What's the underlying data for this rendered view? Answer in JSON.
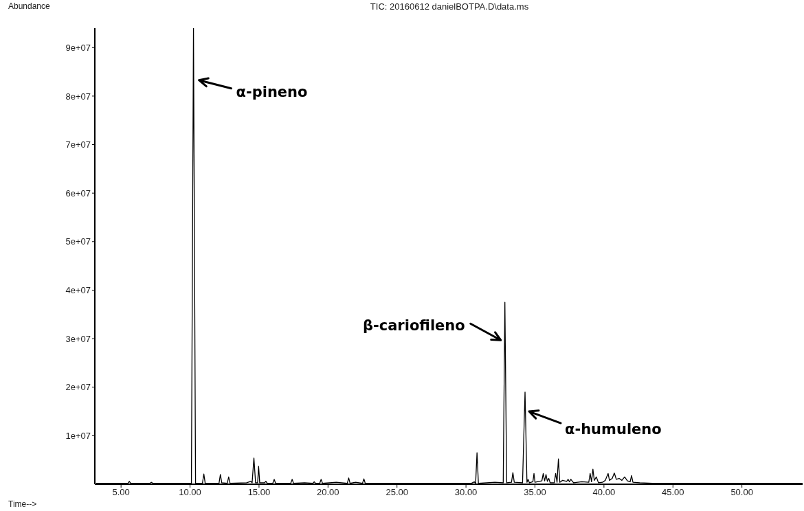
{
  "chart_data": {
    "type": "line",
    "title": "TIC: 20160612 danielBOTPA.D\\data.ms",
    "xlabel": "Time-->",
    "ylabel": "Abundance",
    "x": [
      3.2,
      5.5,
      5.6,
      5.7,
      7.1,
      7.2,
      7.3,
      10.1,
      10.25,
      10.4,
      10.9,
      11.0,
      11.1,
      12.1,
      12.2,
      12.3,
      12.7,
      12.8,
      12.9,
      14.1,
      14.4,
      14.5,
      14.63,
      14.75,
      14.9,
      14.97,
      15.05,
      15.4,
      15.5,
      15.6,
      16.0,
      16.1,
      16.2,
      17.3,
      17.4,
      17.5,
      18.3,
      18.9,
      19.0,
      19.1,
      19.4,
      19.5,
      19.6,
      20.6,
      21.4,
      21.5,
      21.6,
      22.0,
      22.5,
      22.6,
      22.7,
      30.4,
      30.6,
      30.7,
      30.8,
      30.9,
      32.1,
      32.7,
      32.82,
      32.95,
      33.3,
      33.4,
      33.5,
      34.1,
      34.28,
      34.42,
      34.5,
      34.6,
      34.85,
      34.93,
      35.0,
      35.5,
      35.6,
      35.7,
      35.8,
      35.9,
      36.0,
      36.1,
      36.4,
      36.5,
      36.6,
      36.7,
      36.8,
      37.0,
      37.3,
      37.4,
      37.5,
      37.6,
      37.8,
      38.4,
      38.9,
      39.0,
      39.1,
      39.2,
      39.3,
      39.45,
      39.6,
      39.9,
      40.1,
      40.3,
      40.4,
      40.6,
      40.75,
      40.9,
      41.1,
      41.3,
      41.5,
      41.7,
      41.9,
      42.0,
      42.1,
      42.6,
      43.5,
      54.4
    ],
    "series": [
      {
        "color": "#000000",
        "values": [
          200000,
          200000,
          600000,
          200000,
          200000,
          400000,
          200000,
          200000,
          94000000,
          200000,
          200000,
          2100000,
          200000,
          200000,
          2000000,
          300000,
          200000,
          1500000,
          200000,
          300000,
          600000,
          300000,
          5400000,
          300000,
          300000,
          3700000,
          300000,
          300000,
          600000,
          200000,
          200000,
          1000000,
          200000,
          200000,
          1000000,
          200000,
          300000,
          200000,
          500000,
          200000,
          200000,
          1000000,
          200000,
          400000,
          200000,
          1300000,
          200000,
          400000,
          200000,
          1100000,
          200000,
          200000,
          500000,
          200000,
          6500000,
          200000,
          400000,
          300000,
          37500000,
          300000,
          400000,
          2400000,
          400000,
          300000,
          19000000,
          400000,
          1000000,
          300000,
          500000,
          2200000,
          400000,
          700000,
          2200000,
          700000,
          2000000,
          600000,
          1200000,
          300000,
          300000,
          2200000,
          400000,
          5200000,
          400000,
          800000,
          600000,
          1000000,
          500000,
          1000000,
          300000,
          500000,
          400000,
          2200000,
          500000,
          3100000,
          800000,
          1500000,
          300000,
          400000,
          800000,
          2200000,
          800000,
          1200000,
          2300000,
          1000000,
          1200000,
          800000,
          1500000,
          700000,
          500000,
          1800000,
          400000,
          300000,
          200000,
          200000
        ]
      }
    ],
    "xlim": [
      3.1,
      54.4
    ],
    "xticks": [
      {
        "value": 5,
        "label": "5.00"
      },
      {
        "value": 10,
        "label": "10.00"
      },
      {
        "value": 15,
        "label": "15.00"
      },
      {
        "value": 20,
        "label": "20.00"
      },
      {
        "value": 25,
        "label": "25.00"
      },
      {
        "value": 30,
        "label": "30.00"
      },
      {
        "value": 35,
        "label": "35.00"
      },
      {
        "value": 40,
        "label": "40.00"
      },
      {
        "value": 45,
        "label": "45.00"
      },
      {
        "value": 50,
        "label": "50.00"
      }
    ],
    "ylim": [
      0,
      94000000
    ],
    "yticks": [
      {
        "value": 10000000,
        "label": "1e+07"
      },
      {
        "value": 20000000,
        "label": "2e+07"
      },
      {
        "value": 30000000,
        "label": "3e+07"
      },
      {
        "value": 40000000,
        "label": "4e+07"
      },
      {
        "value": 50000000,
        "label": "5e+07"
      },
      {
        "value": 60000000,
        "label": "6e+07"
      },
      {
        "value": 70000000,
        "label": "7e+07"
      },
      {
        "value": 80000000,
        "label": "8e+07"
      },
      {
        "value": 90000000,
        "label": "9e+07"
      }
    ],
    "annotations": [
      {
        "text": "α-pineno",
        "x": 10.25,
        "y": 83000000
      },
      {
        "text": "β-cariofileno",
        "x": 32.82,
        "y": 29700000
      },
      {
        "text": "α-humuleno",
        "x": 34.28,
        "y": 15000000
      }
    ],
    "grid": false,
    "legend": false,
    "marker": "none",
    "line_style": "solid"
  }
}
